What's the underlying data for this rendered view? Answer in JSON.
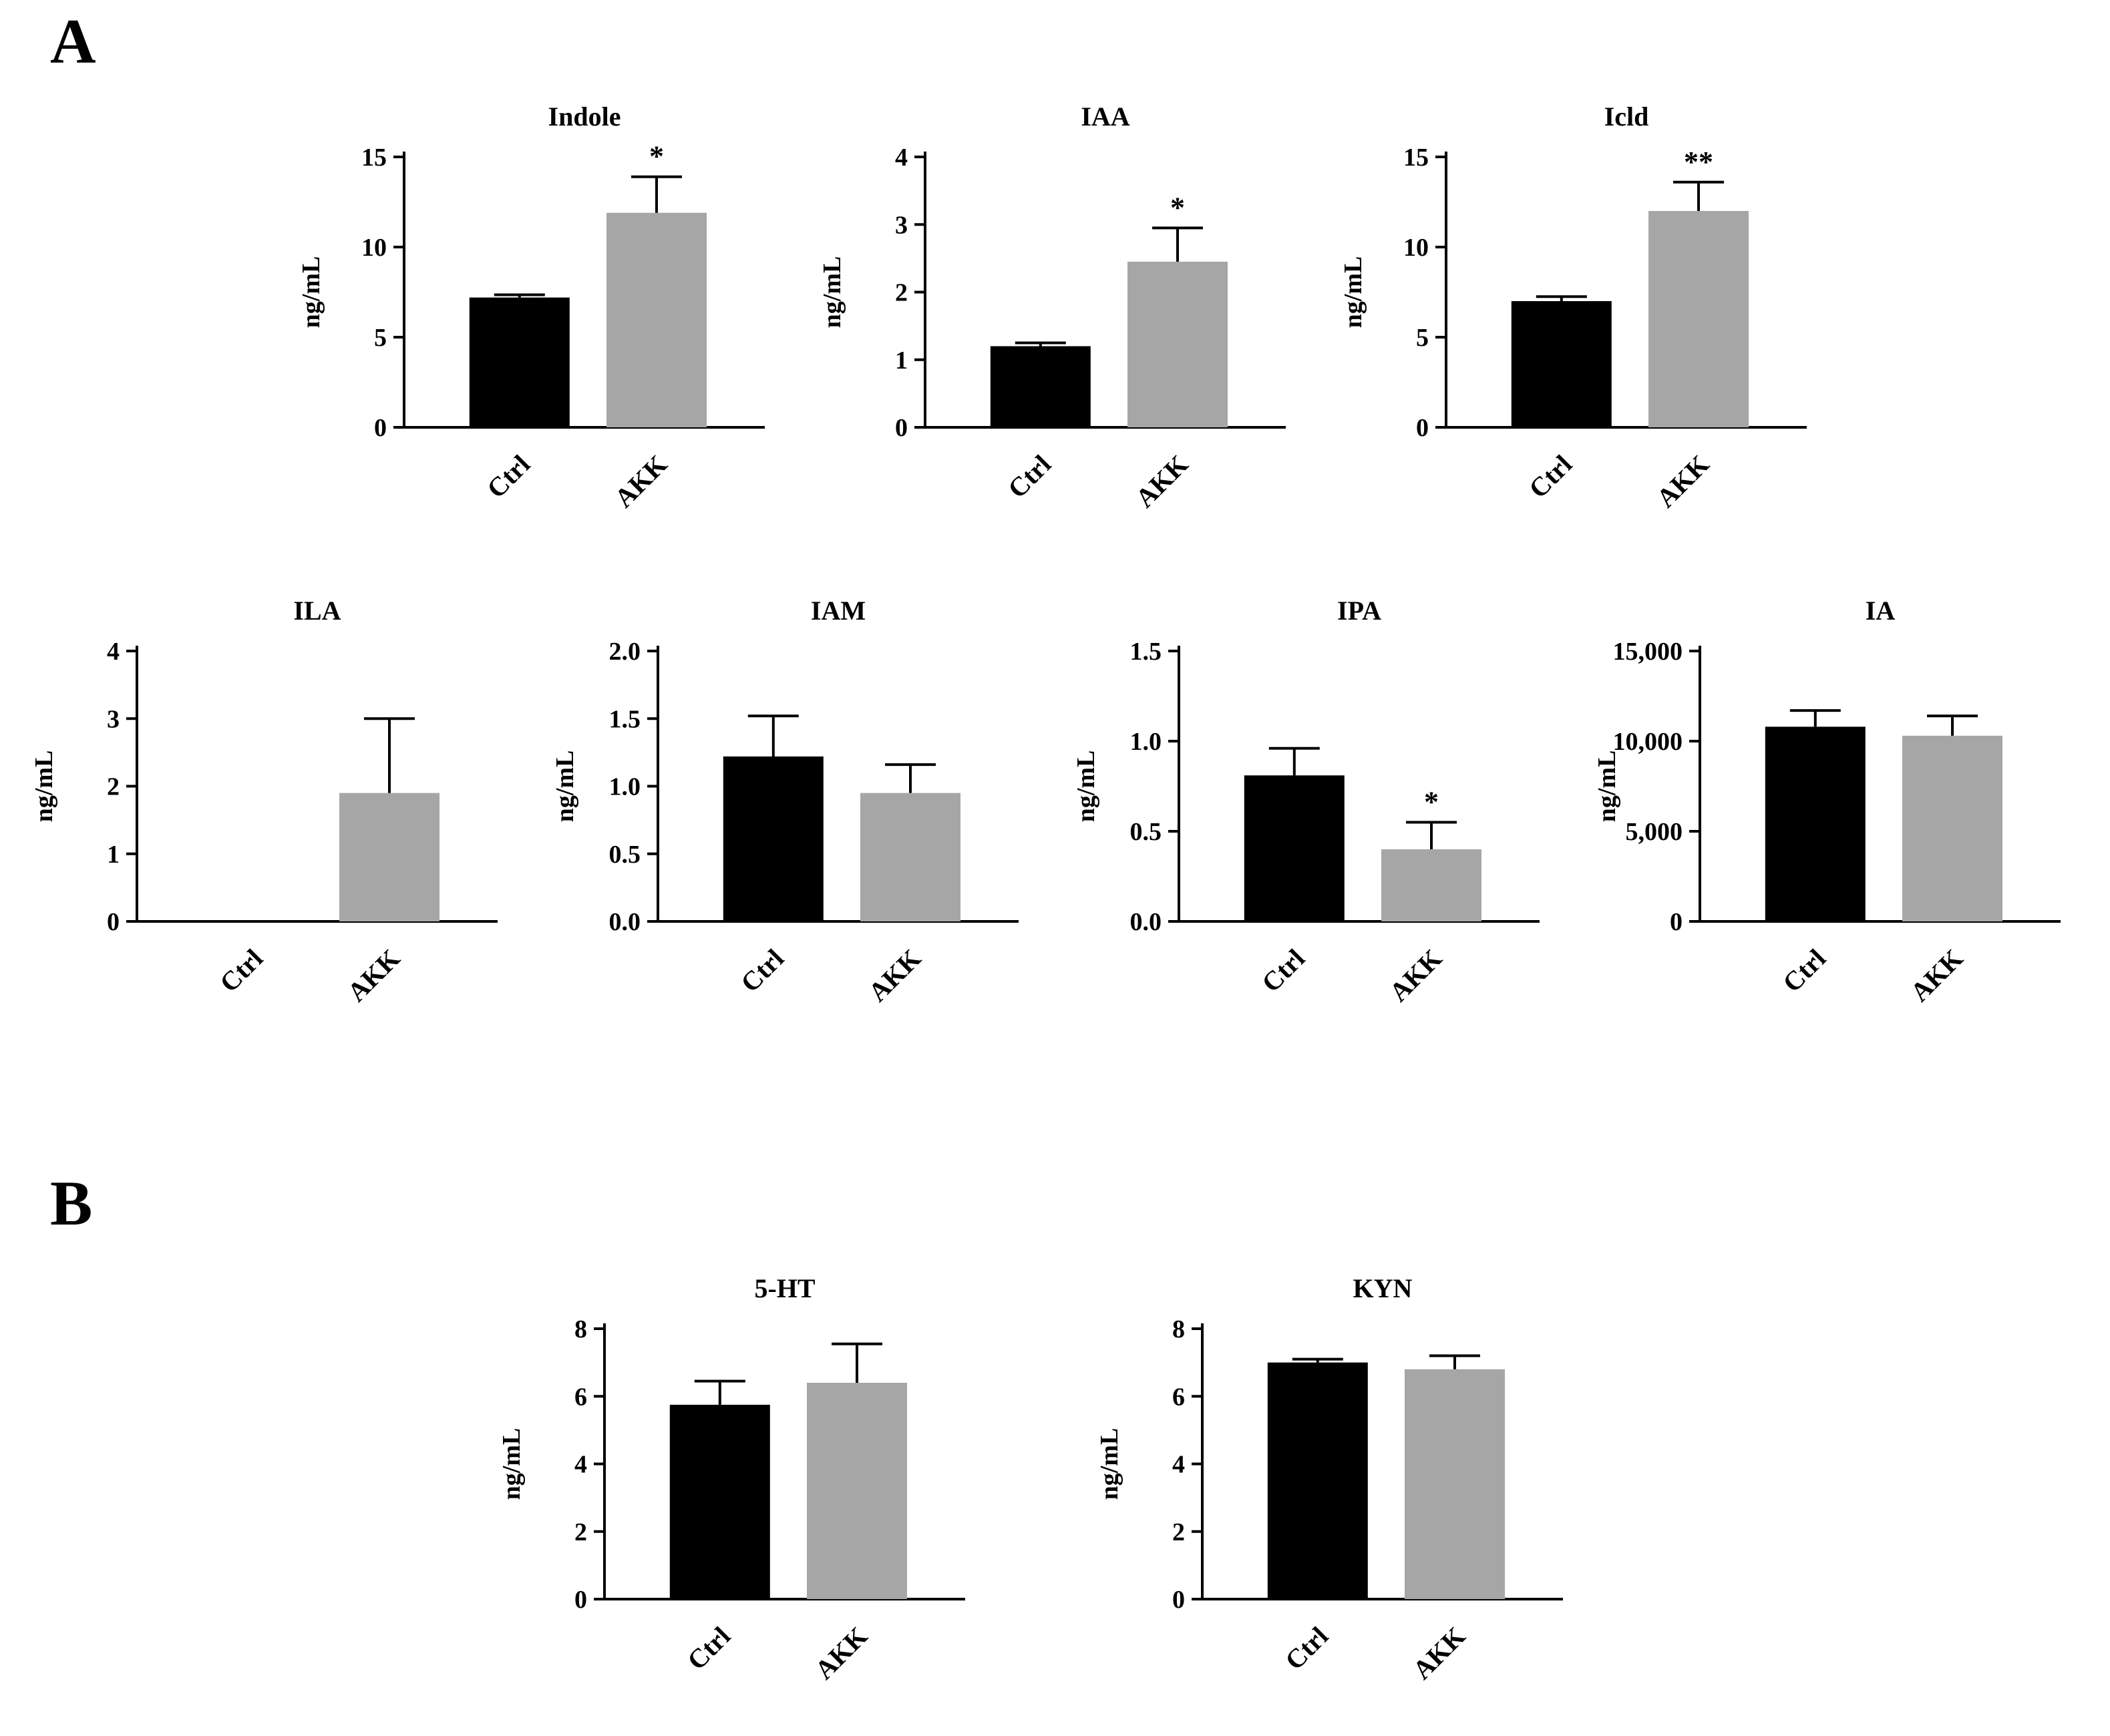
{
  "figure": {
    "panel_a_label": "A",
    "panel_b_label": "B"
  },
  "style": {
    "bar_colors": [
      "#000000",
      "#a6a6a6"
    ],
    "axis_color": "#000000"
  },
  "chart_data": [
    {
      "type": "bar",
      "panel": "A",
      "title": "Indole",
      "ylabel": "ng/mL",
      "categories": [
        "Ctrl",
        "AKK"
      ],
      "values": [
        7.2,
        11.9
      ],
      "errors": [
        0.15,
        2.0
      ],
      "ylim": [
        0,
        15
      ],
      "yticks": [
        {
          "v": 0,
          "label": "0"
        },
        {
          "v": 5,
          "label": "5"
        },
        {
          "v": 10,
          "label": "10"
        },
        {
          "v": 15,
          "label": "15"
        }
      ],
      "sig": {
        "bar": 1,
        "label": "*"
      },
      "grid": false,
      "legend": "none"
    },
    {
      "type": "bar",
      "panel": "A",
      "title": "IAA",
      "ylabel": "ng/mL",
      "categories": [
        "Ctrl",
        "AKK"
      ],
      "values": [
        1.2,
        2.45
      ],
      "errors": [
        0.05,
        0.5
      ],
      "ylim": [
        0,
        4
      ],
      "yticks": [
        {
          "v": 0,
          "label": "0"
        },
        {
          "v": 1,
          "label": "1"
        },
        {
          "v": 2,
          "label": "2"
        },
        {
          "v": 3,
          "label": "3"
        },
        {
          "v": 4,
          "label": "4"
        }
      ],
      "sig": {
        "bar": 1,
        "label": "*"
      },
      "grid": false,
      "legend": "none"
    },
    {
      "type": "bar",
      "panel": "A",
      "title": "Icld",
      "ylabel": "ng/mL",
      "categories": [
        "Ctrl",
        "AKK"
      ],
      "values": [
        7.0,
        12.0
      ],
      "errors": [
        0.25,
        1.6
      ],
      "ylim": [
        0,
        15
      ],
      "yticks": [
        {
          "v": 0,
          "label": "0"
        },
        {
          "v": 5,
          "label": "5"
        },
        {
          "v": 10,
          "label": "10"
        },
        {
          "v": 15,
          "label": "15"
        }
      ],
      "sig": {
        "bar": 1,
        "label": "**"
      },
      "grid": false,
      "legend": "none"
    },
    {
      "type": "bar",
      "panel": "A",
      "title": "ILA",
      "ylabel": "ng/mL",
      "categories": [
        "Ctrl",
        "AKK"
      ],
      "values": [
        0,
        1.9
      ],
      "errors": [
        0,
        1.1
      ],
      "ylim": [
        0,
        4
      ],
      "yticks": [
        {
          "v": 0,
          "label": "0"
        },
        {
          "v": 1,
          "label": "1"
        },
        {
          "v": 2,
          "label": "2"
        },
        {
          "v": 3,
          "label": "3"
        },
        {
          "v": 4,
          "label": "4"
        }
      ],
      "sig": null,
      "grid": false,
      "legend": "none"
    },
    {
      "type": "bar",
      "panel": "A",
      "title": "IAM",
      "ylabel": "ng/mL",
      "categories": [
        "Ctrl",
        "AKK"
      ],
      "values": [
        1.22,
        0.95
      ],
      "errors": [
        0.3,
        0.21
      ],
      "ylim": [
        0,
        2
      ],
      "yticks": [
        {
          "v": 0,
          "label": "0.0"
        },
        {
          "v": 0.5,
          "label": "0.5"
        },
        {
          "v": 1,
          "label": "1.0"
        },
        {
          "v": 1.5,
          "label": "1.5"
        },
        {
          "v": 2,
          "label": "2.0"
        }
      ],
      "sig": null,
      "grid": false,
      "legend": "none"
    },
    {
      "type": "bar",
      "panel": "A",
      "title": "IPA",
      "ylabel": "ng/mL",
      "categories": [
        "Ctrl",
        "AKK"
      ],
      "values": [
        0.81,
        0.4
      ],
      "errors": [
        0.15,
        0.15
      ],
      "ylim": [
        0,
        1.5
      ],
      "yticks": [
        {
          "v": 0,
          "label": "0.0"
        },
        {
          "v": 0.5,
          "label": "0.5"
        },
        {
          "v": 1,
          "label": "1.0"
        },
        {
          "v": 1.5,
          "label": "1.5"
        }
      ],
      "sig": {
        "bar": 1,
        "label": "*"
      },
      "grid": false,
      "legend": "none"
    },
    {
      "type": "bar",
      "panel": "A",
      "title": "IA",
      "ylabel": "ng/mL",
      "categories": [
        "Ctrl",
        "AKK"
      ],
      "values": [
        10800,
        10300
      ],
      "errors": [
        900,
        1100
      ],
      "ylim": [
        0,
        15000
      ],
      "yticks": [
        {
          "v": 0,
          "label": "0"
        },
        {
          "v": 5000,
          "label": "5,000"
        },
        {
          "v": 10000,
          "label": "10,000"
        },
        {
          "v": 15000,
          "label": "15,000"
        }
      ],
      "sig": null,
      "grid": false,
      "legend": "none"
    },
    {
      "type": "bar",
      "panel": "B",
      "title": "5-HT",
      "ylabel": "ng/mL",
      "categories": [
        "Ctrl",
        "AKK"
      ],
      "values": [
        5.75,
        6.4
      ],
      "errors": [
        0.7,
        1.15
      ],
      "ylim": [
        0,
        8
      ],
      "yticks": [
        {
          "v": 0,
          "label": "0"
        },
        {
          "v": 2,
          "label": "2"
        },
        {
          "v": 4,
          "label": "4"
        },
        {
          "v": 6,
          "label": "6"
        },
        {
          "v": 8,
          "label": "8"
        }
      ],
      "sig": null,
      "grid": false,
      "legend": "none"
    },
    {
      "type": "bar",
      "panel": "B",
      "title": "KYN",
      "ylabel": "ng/mL",
      "categories": [
        "Ctrl",
        "AKK"
      ],
      "values": [
        7.0,
        6.8
      ],
      "errors": [
        0.1,
        0.4
      ],
      "ylim": [
        0,
        8
      ],
      "yticks": [
        {
          "v": 0,
          "label": "0"
        },
        {
          "v": 2,
          "label": "2"
        },
        {
          "v": 4,
          "label": "4"
        },
        {
          "v": 6,
          "label": "6"
        },
        {
          "v": 8,
          "label": "8"
        }
      ],
      "sig": null,
      "grid": false,
      "legend": "none"
    }
  ]
}
